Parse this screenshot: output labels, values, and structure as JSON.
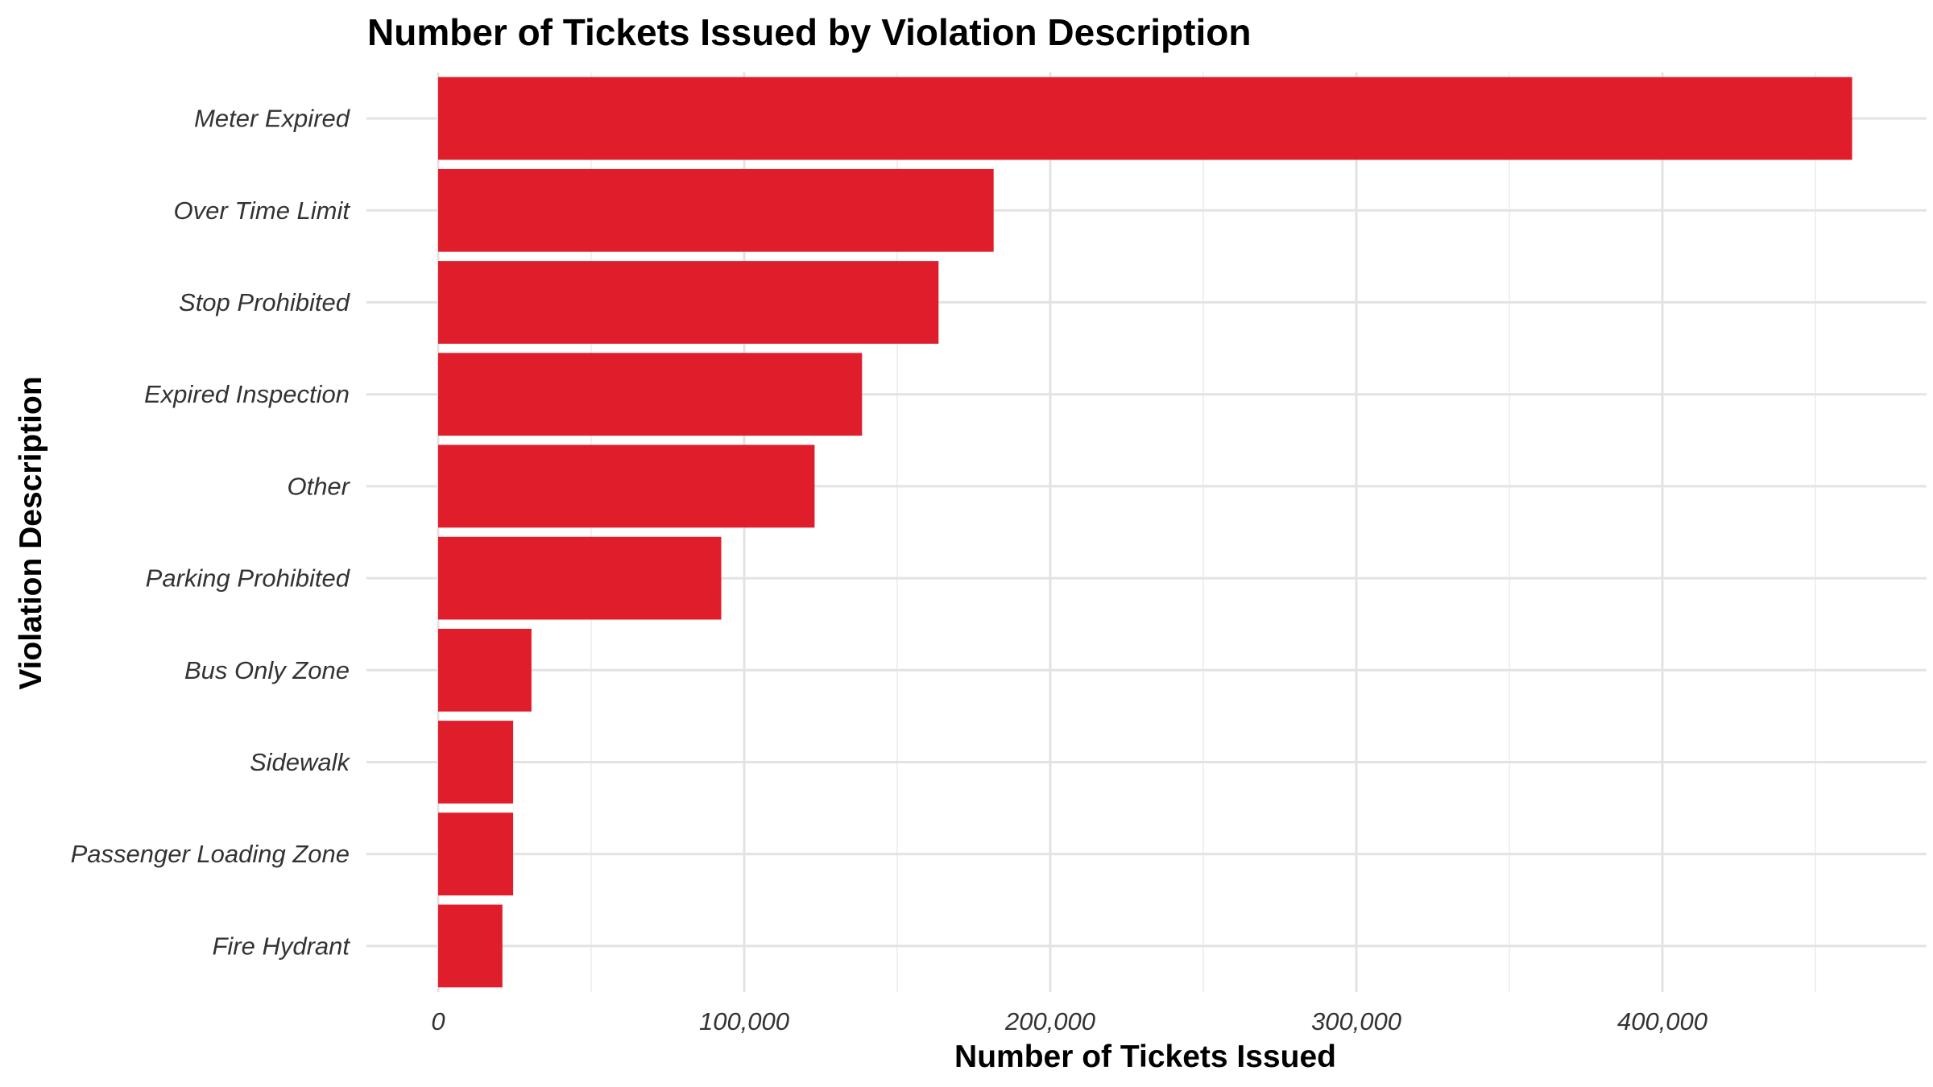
{
  "chart_data": {
    "type": "bar",
    "orientation": "horizontal",
    "title": "Number of Tickets Issued by Violation Description",
    "xlabel": "Number of Tickets Issued",
    "ylabel": "Violation Description",
    "categories": [
      "Meter Expired",
      "Over Time Limit",
      "Stop Prohibited",
      "Expired Inspection",
      "Other",
      "Parking Prohibited",
      "Bus Only Zone",
      "Sidewalk",
      "Passenger Loading Zone",
      "Fire Hydrant"
    ],
    "values": [
      462000,
      181500,
      163500,
      138500,
      123000,
      92500,
      30500,
      24500,
      24500,
      21000
    ],
    "xlim": [
      0,
      475000
    ],
    "x_ticks": [
      0,
      100000,
      200000,
      300000,
      400000
    ],
    "x_tick_labels": [
      "0",
      "100,000",
      "200,000",
      "300,000",
      "400,000"
    ],
    "grid": true,
    "legend": "none",
    "bar_color": "#e01e2b"
  }
}
